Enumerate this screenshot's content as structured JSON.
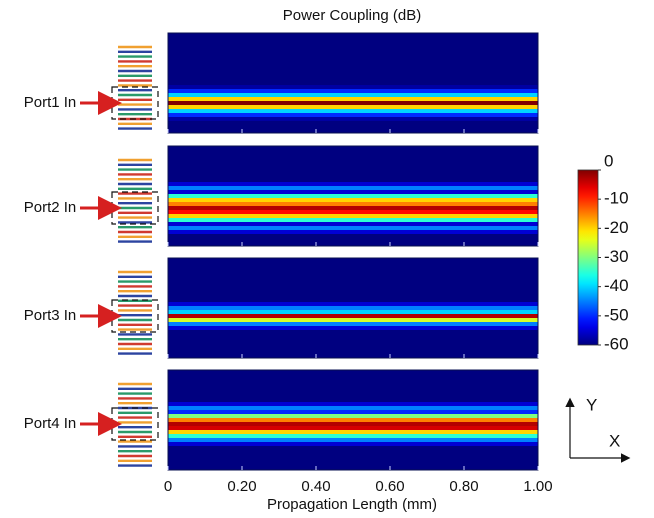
{
  "chart_data": {
    "type": "heatmap",
    "title": "Power Coupling (dB)",
    "x_label": "Propagation Length (mm)",
    "xlim": [
      0,
      1
    ],
    "xticks": [
      0,
      {
        "value": 0.2,
        "label": "0.20"
      },
      {
        "value": 0.4,
        "label": "0.40"
      },
      {
        "value": 0.6,
        "label": "0.60"
      },
      {
        "value": 0.8,
        "label": "0.80"
      },
      {
        "value": 1,
        "label": "1.00"
      }
    ],
    "colormap": "jet",
    "clim": [
      -60,
      0
    ],
    "colorbar_ticks": [
      0,
      -10,
      -20,
      -30,
      -40,
      -50,
      -60
    ],
    "panels": [
      {
        "label": "Port1 In",
        "profile": [
          -60,
          -60,
          -60,
          -60,
          -60,
          -60,
          -60,
          -60,
          -60,
          -60,
          -60,
          -60,
          -60,
          -58,
          -50,
          -40,
          -20,
          0,
          -20,
          -40,
          -50,
          -58,
          -60,
          -60,
          -60
        ]
      },
      {
        "label": "Port2 In",
        "profile": [
          -60,
          -60,
          -60,
          -60,
          -60,
          -60,
          -60,
          -60,
          -60,
          -55,
          -45,
          -55,
          -35,
          -20,
          -15,
          -3,
          -8,
          -20,
          -35,
          -55,
          -45,
          -55,
          -60,
          -60,
          -60
        ]
      },
      {
        "label": "Port3 In",
        "profile": [
          -60,
          -60,
          -60,
          -60,
          -60,
          -60,
          -60,
          -60,
          -60,
          -60,
          -60,
          -55,
          -45,
          -40,
          -3,
          -25,
          -45,
          -55,
          -60,
          -60,
          -60,
          -60,
          -60,
          -60,
          -60
        ]
      },
      {
        "label": "Port4 In",
        "profile": [
          -60,
          -60,
          -60,
          -60,
          -60,
          -60,
          -60,
          -60,
          -55,
          -45,
          -50,
          -30,
          -15,
          -3,
          -5,
          -20,
          -35,
          -45,
          -55,
          -60,
          -60,
          -60,
          -60,
          -60,
          -60
        ]
      }
    ],
    "axes_icon": {
      "y": "Y",
      "x": "X"
    }
  }
}
